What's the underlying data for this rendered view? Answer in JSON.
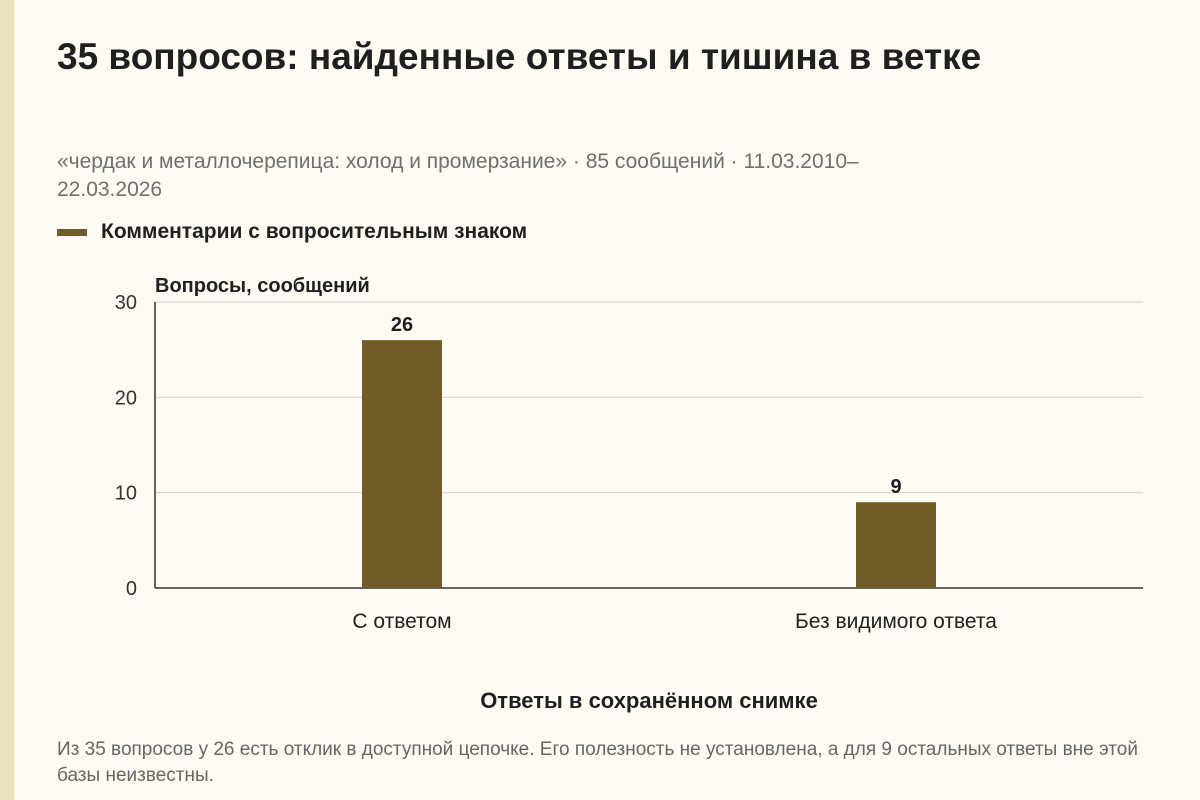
{
  "title": "35 вопросов: найденные ответы и тишина в ветке",
  "subtitle": "«чердак и металлочерепица: холод и промерзание» · 85 сообщений · 11.03.2010–22.03.2026",
  "caption": "Из 35 вопросов у 26 есть отклик в доступной цепочке. Его полезность не установлена, а для 9 остальных ответы вне этой базы неизвестны.",
  "colors": {
    "bar": "#715b28",
    "grid": "#d9d5c8",
    "axis": "#333333"
  },
  "chart_data": {
    "type": "bar",
    "categories": [
      "С ответом",
      "Без видимого ответа"
    ],
    "series": [
      {
        "name": "Комментарии с вопросительным знаком",
        "values": [
          26,
          9
        ]
      }
    ],
    "data_labels": [
      "26",
      "9"
    ],
    "xlabel": "Ответы в сохранённом снимке",
    "ylabel": "Вопросы, сообщений",
    "ylim": [
      0,
      30
    ],
    "yticks": [
      0,
      10,
      20,
      30
    ],
    "grid": true,
    "legend": "top-left"
  }
}
